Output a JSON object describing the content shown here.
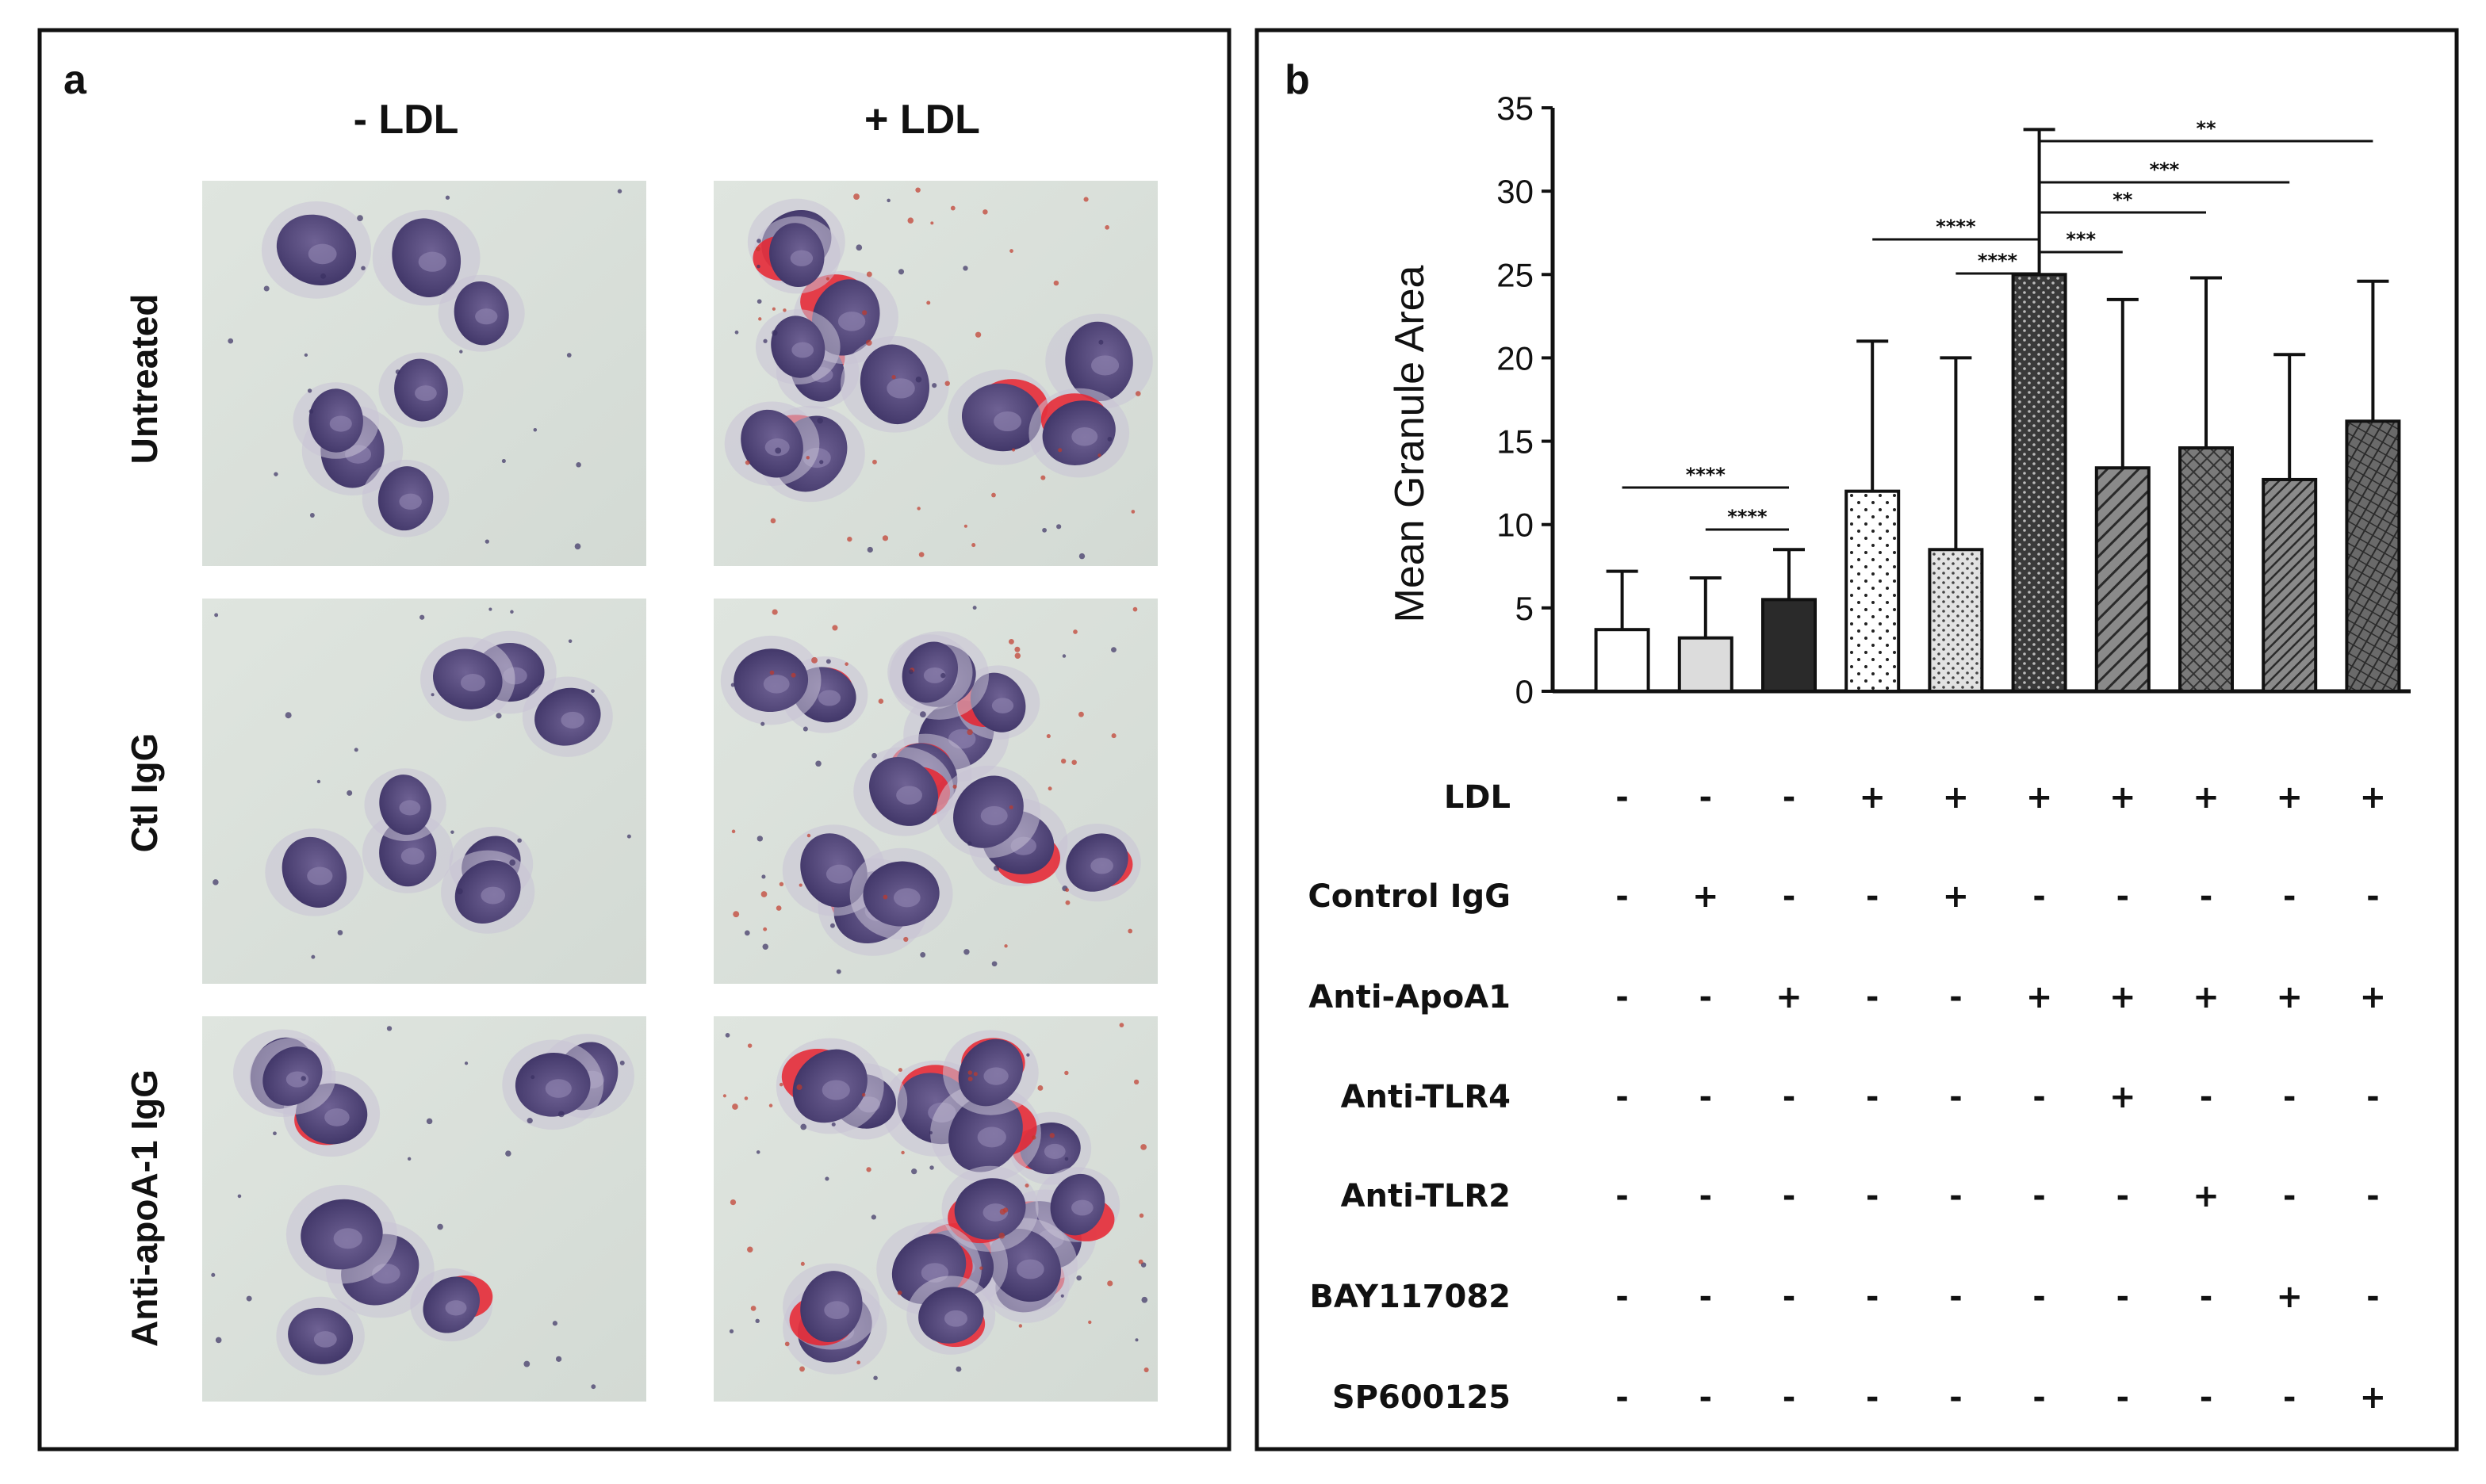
{
  "panel_a": {
    "label": "a",
    "columns": [
      "- LDL",
      "+ LDL"
    ],
    "rows": [
      "Untreated",
      "Ctl IgG",
      "Anti-apoA-1 IgG"
    ]
  },
  "panel_b": {
    "label": "b"
  },
  "chart_data": {
    "type": "bar",
    "ylabel": "Mean Granule Area",
    "ylim": [
      0,
      35
    ],
    "yticks": [
      0,
      5,
      10,
      15,
      20,
      25,
      30,
      35
    ],
    "grid": false,
    "bars": [
      {
        "mean": 3.7,
        "error": 3.5,
        "fill": "white"
      },
      {
        "mean": 3.2,
        "error": 3.6,
        "fill": "lightgray"
      },
      {
        "mean": 5.5,
        "error": 3.0,
        "fill": "black"
      },
      {
        "mean": 12.0,
        "error": 9.0,
        "fill": "sparse-dots"
      },
      {
        "mean": 8.5,
        "error": 11.5,
        "fill": "dense-dots"
      },
      {
        "mean": 25.0,
        "error": 8.7,
        "fill": "dark-dots"
      },
      {
        "mean": 13.4,
        "error": 10.1,
        "fill": "diagonal-hatch"
      },
      {
        "mean": 14.6,
        "error": 10.2,
        "fill": "crosshatch"
      },
      {
        "mean": 12.7,
        "error": 7.5,
        "fill": "dense-diagonal"
      },
      {
        "mean": 16.2,
        "error": 8.4,
        "fill": "cross-diagonal"
      }
    ],
    "significance": [
      {
        "from": 1,
        "to": 3,
        "label": "****"
      },
      {
        "from": 2,
        "to": 3,
        "label": "****"
      },
      {
        "from": 4,
        "to": 6,
        "label": "****"
      },
      {
        "from": 5,
        "to": 6,
        "label": "****"
      },
      {
        "from": 6,
        "to": 7,
        "label": "***"
      },
      {
        "from": 6,
        "to": 8,
        "label": "**"
      },
      {
        "from": 6,
        "to": 9,
        "label": "***"
      },
      {
        "from": 6,
        "to": 10,
        "label": "**"
      }
    ],
    "treatments": [
      {
        "name": "LDL",
        "signs": [
          "-",
          "-",
          "-",
          "+",
          "+",
          "+",
          "+",
          "+",
          "+",
          "+"
        ]
      },
      {
        "name": "Control IgG",
        "signs": [
          "-",
          "+",
          "-",
          "-",
          "+",
          "-",
          "-",
          "-",
          "-",
          "-"
        ]
      },
      {
        "name": "Anti-ApoA1",
        "signs": [
          "-",
          "-",
          "+",
          "-",
          "-",
          "+",
          "+",
          "+",
          "+",
          "+"
        ]
      },
      {
        "name": "Anti-TLR4",
        "signs": [
          "-",
          "-",
          "-",
          "-",
          "-",
          "-",
          "+",
          "-",
          "-",
          "-"
        ]
      },
      {
        "name": "Anti-TLR2",
        "signs": [
          "-",
          "-",
          "-",
          "-",
          "-",
          "-",
          "-",
          "+",
          "-",
          "-"
        ]
      },
      {
        "name": "BAY117082",
        "signs": [
          "-",
          "-",
          "-",
          "-",
          "-",
          "-",
          "-",
          "-",
          "+",
          "-"
        ]
      },
      {
        "name": "SP600125",
        "signs": [
          "-",
          "-",
          "-",
          "-",
          "-",
          "-",
          "-",
          "-",
          "-",
          "+"
        ]
      }
    ]
  }
}
